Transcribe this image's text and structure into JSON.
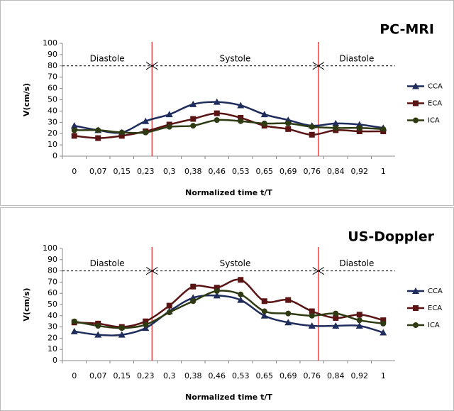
{
  "chart_data": [
    {
      "type": "line",
      "title": "PC-MRI",
      "y_label": "V(cm/s)",
      "x_label": "Normalized time t/T",
      "categories": [
        "0",
        "0,07",
        "0,15",
        "0,23",
        "0,3",
        "0,38",
        "0,46",
        "0,53",
        "0,65",
        "0,69",
        "0,76",
        "0,84",
        "0,92",
        "1"
      ],
      "ylim": [
        0,
        100
      ],
      "yticks": [
        0,
        10,
        20,
        30,
        40,
        50,
        60,
        70,
        80,
        90,
        100
      ],
      "reference_line": 80,
      "phase_boundaries": [
        "0,23",
        "0,76"
      ],
      "phases": [
        "Diastole",
        "Systole",
        "Diastole"
      ],
      "series": [
        {
          "name": "CCA",
          "color": "#1f2d5c",
          "marker": "triangle",
          "values": [
            27,
            23,
            21,
            31,
            37,
            46,
            48,
            45,
            37,
            32,
            27,
            29,
            28,
            25
          ]
        },
        {
          "name": "ECA",
          "color": "#5a1414",
          "marker": "square",
          "values": [
            18,
            16,
            18,
            22,
            28,
            33,
            38,
            34,
            27,
            24,
            19,
            23,
            22,
            22
          ]
        },
        {
          "name": "ICA",
          "color": "#2e3a12",
          "marker": "circle",
          "values": [
            23,
            23,
            21,
            21,
            26,
            27,
            32,
            31,
            29,
            29,
            26,
            25,
            25,
            24
          ]
        }
      ]
    },
    {
      "type": "line",
      "title": "US-Doppler",
      "y_label": "V(cm/s)",
      "x_label": "Normalized time t/T",
      "categories": [
        "0",
        "0,07",
        "0,15",
        "0,23",
        "0,3",
        "0,38",
        "0,46",
        "0,53",
        "0,65",
        "0,69",
        "0,76",
        "0,84",
        "0,92",
        "1"
      ],
      "ylim": [
        0,
        100
      ],
      "yticks": [
        0,
        10,
        20,
        30,
        40,
        50,
        60,
        70,
        80,
        90,
        100
      ],
      "reference_line": 80,
      "phase_boundaries": [
        "0,23",
        "0,76"
      ],
      "phases": [
        "Diastole",
        "Systole",
        "Diastole"
      ],
      "series": [
        {
          "name": "CCA",
          "color": "#1f2d5c",
          "marker": "triangle",
          "values": [
            26,
            23,
            23,
            29,
            44,
            56,
            58,
            54,
            40,
            34,
            31,
            31,
            31,
            25
          ]
        },
        {
          "name": "ECA",
          "color": "#5a1414",
          "marker": "square",
          "values": [
            34,
            33,
            30,
            35,
            49,
            66,
            65,
            72,
            53,
            54,
            44,
            38,
            41,
            36
          ]
        },
        {
          "name": "ICA",
          "color": "#2e3a12",
          "marker": "circle",
          "values": [
            35,
            31,
            29,
            32,
            43,
            53,
            62,
            59,
            44,
            42,
            40,
            42,
            36,
            33
          ]
        }
      ]
    }
  ]
}
